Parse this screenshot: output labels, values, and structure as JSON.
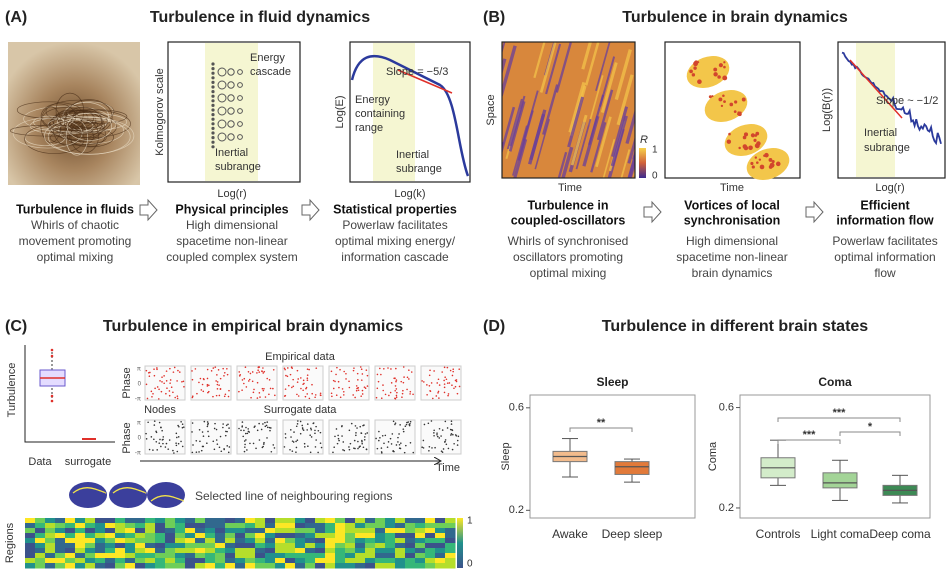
{
  "panel_a": {
    "label": "(A)",
    "title": "Turbulence in fluid dynamics",
    "kolmogorov_plot": {
      "y_label": "Kolmogorov scale",
      "x_label": "Log(r)",
      "energy_cascade": [
        "Energy",
        "cascade"
      ],
      "inertial_subrange": [
        "Inertial",
        "subrange"
      ]
    },
    "spectrum_plot": {
      "y_label": "Log(E)",
      "x_label": "Log(k)",
      "slope": "Slope = −5/3",
      "energy_containing_range": [
        "Energy",
        "containing",
        "range"
      ],
      "inertial_subrange": [
        "Inertial",
        "subrange"
      ]
    },
    "steps": [
      {
        "heading": [
          "Turbulence in fluids"
        ],
        "text": [
          "Whirls of chaotic",
          "movement promoting",
          "optimal mixing"
        ]
      },
      {
        "heading": [
          "Physical principles"
        ],
        "text": [
          "High dimensional",
          "spacetime non-linear",
          "coupled complex system"
        ]
      },
      {
        "heading": [
          "Statistical properties"
        ],
        "text": [
          "Powerlaw facilitates",
          "optimal mixing energy/",
          "information cascade"
        ]
      }
    ]
  },
  "panel_b": {
    "label": "(B)",
    "title": "Turbulence in brain dynamics",
    "oscillator_plot": {
      "y_label": "Space",
      "x_label": "Time",
      "colorbar_label": "R",
      "colorbar_max": 1,
      "colorbar_min": 0
    },
    "vortex_plot": {
      "x_label": "Time"
    },
    "structure_plot": {
      "y_label": "Log(B(r))",
      "x_label": "Log(r)",
      "slope": "Slope ~ −1/2",
      "inertial_subrange": [
        "Inertial",
        "subrange"
      ]
    },
    "steps": [
      {
        "heading": [
          "Turbulence in",
          "coupled-oscillators"
        ],
        "text": [
          "Whirls of synchronised",
          "oscillators promoting",
          "optimal mixing"
        ]
      },
      {
        "heading": [
          "Vortices of local",
          "synchronisation"
        ],
        "text": [
          "High dimensional",
          "spacetime non-linear",
          "brain dynamics"
        ]
      },
      {
        "heading": [
          "Efficient",
          "information flow"
        ],
        "text": [
          "Powerlaw facilitates",
          "optimal information",
          "flow"
        ]
      }
    ]
  },
  "panel_c": {
    "label": "(C)",
    "title": "Turbulence in empirical brain dynamics",
    "boxplot": {
      "y_label": "Turbulence",
      "categories": [
        "Data",
        "surrogate"
      ]
    },
    "empirical": {
      "title": "Empirical data",
      "y_label": "Phase"
    },
    "surrogate": {
      "title": "Surrogate data",
      "y_label": "Phase",
      "nodes_label": "Nodes"
    },
    "phase_ticks": [
      "π",
      "0",
      "-π"
    ],
    "time_label": "Time",
    "regions_caption": "Selected line of neighbouring regions",
    "heatmap": {
      "y_label": "Regions",
      "colorbar_max": 1,
      "colorbar_min": 0
    }
  },
  "panel_d": {
    "label": "(D)",
    "title": "Turbulence in different brain states",
    "chart_data": [
      {
        "type": "box",
        "title": "Sleep",
        "y_label": "Sleep",
        "categories": [
          "Awake",
          "Deep sleep"
        ],
        "boxes": [
          {
            "low": 0.33,
            "q1": 0.39,
            "median": 0.41,
            "q3": 0.43,
            "high": 0.48,
            "color": "#f2bb8c"
          },
          {
            "low": 0.31,
            "q1": 0.34,
            "median": 0.37,
            "q3": 0.39,
            "high": 0.4,
            "color": "#e27a3a"
          }
        ],
        "ylim": [
          0.17,
          0.65
        ],
        "yticks": [
          0.2,
          0.6
        ],
        "annotations": [
          "**"
        ]
      },
      {
        "type": "box",
        "title": "Coma",
        "y_label": "Coma",
        "categories": [
          "Controls",
          "Light coma",
          "Deep coma"
        ],
        "boxes": [
          {
            "low": 0.29,
            "q1": 0.32,
            "median": 0.36,
            "q3": 0.4,
            "high": 0.47,
            "color": "#d3ecca"
          },
          {
            "low": 0.23,
            "q1": 0.28,
            "median": 0.3,
            "q3": 0.34,
            "high": 0.39,
            "color": "#a3d497"
          },
          {
            "low": 0.22,
            "q1": 0.25,
            "median": 0.27,
            "q3": 0.29,
            "high": 0.33,
            "color": "#3d8a55"
          }
        ],
        "ylim": [
          0.16,
          0.65
        ],
        "yticks": [
          0.2,
          0.6
        ],
        "annotations": [
          "***",
          "***",
          "*"
        ]
      }
    ]
  }
}
